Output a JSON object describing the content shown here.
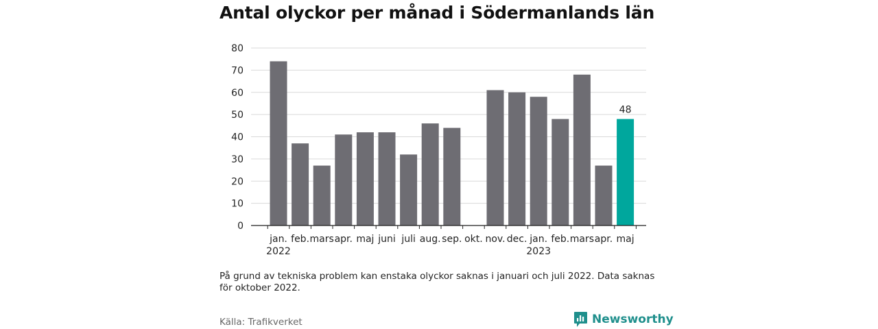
{
  "title": "Antal olyckor per månad i Södermanlands län",
  "note": "På grund av tekniska problem kan enstaka olyckor saknas i januari och juli 2022. Data saknas för oktober 2022.",
  "source": "Källa: Trafikverket",
  "brand": "Newsworthy",
  "colors": {
    "bar": "#6e6d73",
    "highlight": "#00a79d",
    "grid": "#d9d9d9",
    "axis": "#222222",
    "brand": "#1f8f8c"
  },
  "chart_data": {
    "type": "bar",
    "title": "Antal olyckor per månad i Södermanlands län",
    "xlabel": "",
    "ylabel": "",
    "ylim": [
      0,
      80
    ],
    "yticks": [
      0,
      10,
      20,
      30,
      40,
      50,
      60,
      70,
      80
    ],
    "grid": true,
    "categories": [
      "jan.",
      "feb.",
      "mars",
      "apr.",
      "maj",
      "juni",
      "juli",
      "aug.",
      "sep.",
      "okt.",
      "nov.",
      "dec.",
      "jan.",
      "feb.",
      "mars",
      "apr.",
      "maj"
    ],
    "year_labels": [
      {
        "index": 0,
        "label": "2022"
      },
      {
        "index": 12,
        "label": "2023"
      }
    ],
    "values": [
      74,
      37,
      27,
      41,
      42,
      42,
      32,
      46,
      44,
      null,
      61,
      60,
      58,
      48,
      68,
      27,
      48
    ],
    "highlight_index": 16,
    "data_labels": [
      {
        "index": 16,
        "label": "48"
      }
    ]
  }
}
